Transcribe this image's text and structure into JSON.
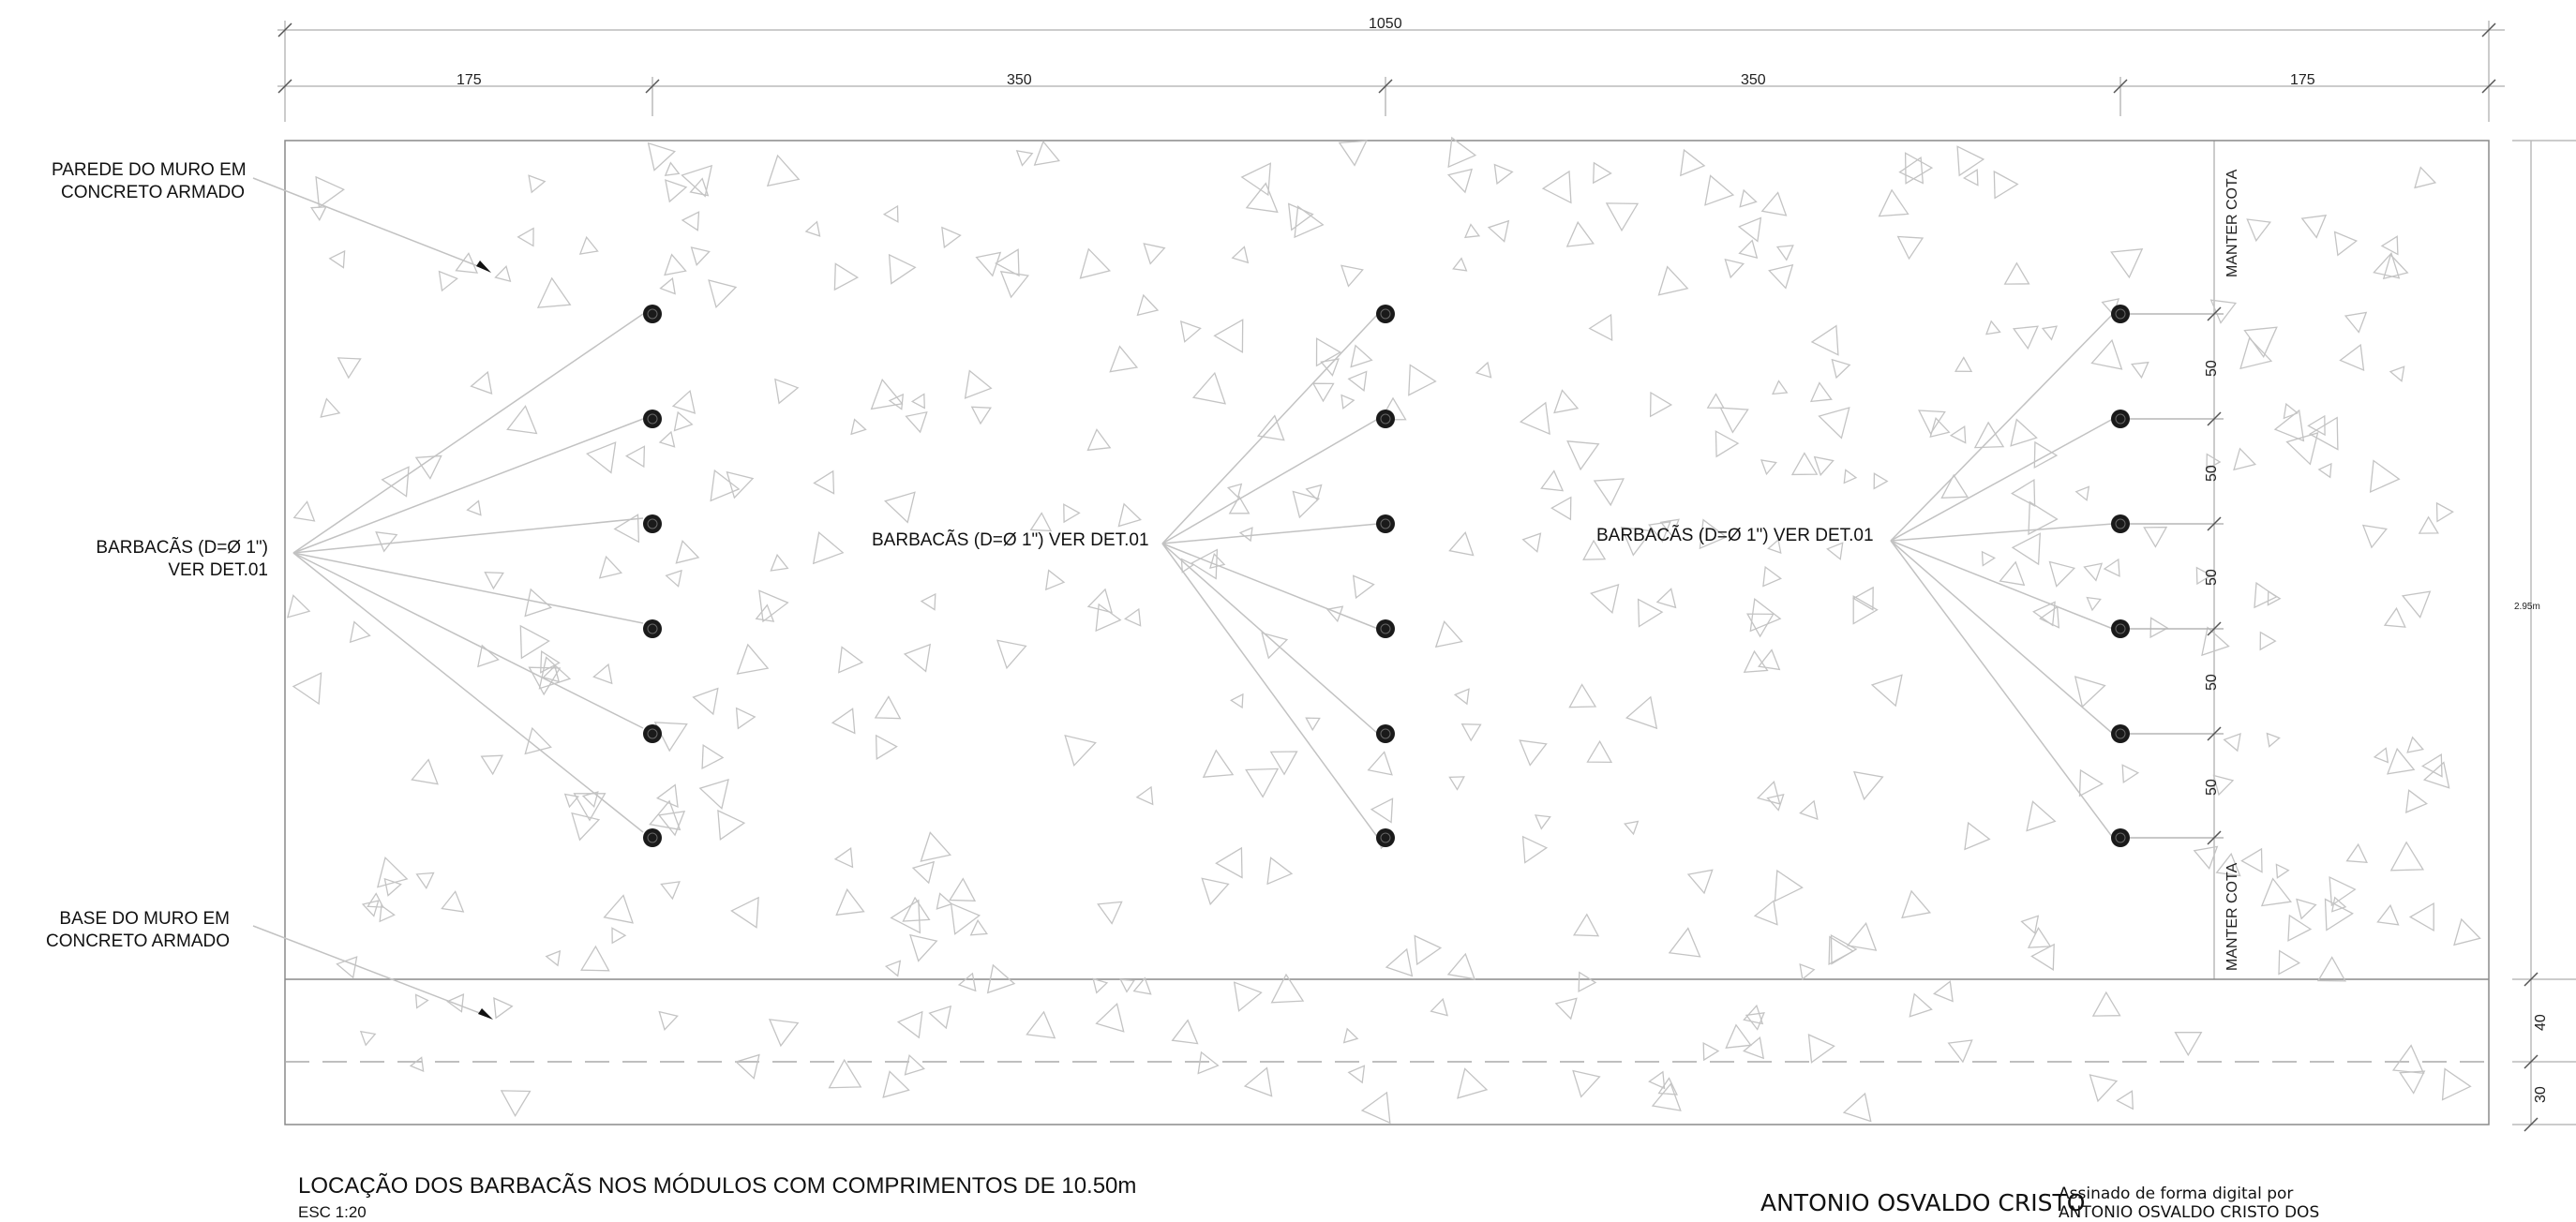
{
  "dimensions": {
    "total": "1050",
    "segments": [
      "175",
      "350",
      "350",
      "175"
    ],
    "height": "2.95m",
    "spacing": [
      "50",
      "50",
      "50",
      "50",
      "50"
    ],
    "base_top": "40",
    "base_bottom": "30"
  },
  "notes": {
    "keep_level": "MANTER COTA"
  },
  "callouts": {
    "wall_line1": "PAREDE DO MURO EM",
    "wall_line2": "CONCRETO ARMADO",
    "base_line1": "BASE DO MURO EM",
    "base_line2": "CONCRETO ARMADO",
    "weep_left_line1": "BARBACÃS (D=Ø 1\")",
    "weep_left_line2": "VER DET.01",
    "weep_mid": "BARBACÃS (D=Ø 1\") VER DET.01",
    "weep_right": "BARBACÃS (D=Ø 1\") VER DET.01"
  },
  "title_block": {
    "title": "LOCAÇÃO DOS BARBACÃS NOS MÓDULOS COM COMPRIMENTOS DE 10.50m",
    "scale": "ESC 1:20",
    "signer": "ANTONIO OSVALDO CRISTO",
    "signature_line1": "Assinado de forma digital por",
    "signature_line2": "ANTONIO OSVALDO CRISTO DOS"
  }
}
